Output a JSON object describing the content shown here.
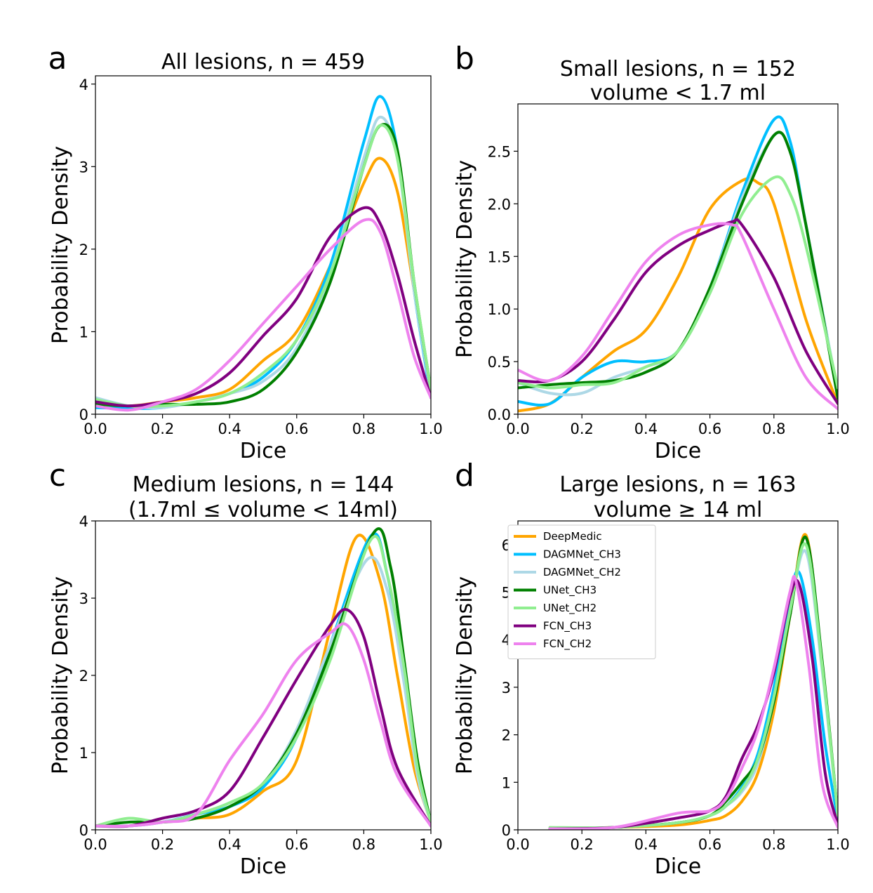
{
  "chart_data": [
    {
      "type": "line",
      "panel_label": "a",
      "title": "All lesions, n = 459",
      "subtitle": "",
      "xlabel": "Dice",
      "ylabel": "Probability Density",
      "xlim": [
        0,
        1
      ],
      "ylim": [
        0,
        4.1
      ],
      "xticks": [
        "0.0",
        "0.2",
        "0.4",
        "0.6",
        "0.8",
        "1.0"
      ],
      "xtick_values": [
        0,
        0.2,
        0.4,
        0.6,
        0.8,
        1.0
      ],
      "yticks": [
        "0",
        "1",
        "2",
        "3",
        "4"
      ],
      "ytick_values": [
        0,
        1,
        2,
        3,
        4
      ],
      "grid": false,
      "series": [
        {
          "key": "deepmedic",
          "x": [
            0,
            0.1,
            0.2,
            0.3,
            0.4,
            0.5,
            0.6,
            0.7,
            0.8,
            0.85,
            0.9,
            0.95,
            1.0
          ],
          "y": [
            0.15,
            0.1,
            0.15,
            0.2,
            0.3,
            0.65,
            1.0,
            1.8,
            2.8,
            3.1,
            2.7,
            1.5,
            0.3
          ]
        },
        {
          "key": "dagmnet_ch3",
          "x": [
            0,
            0.1,
            0.2,
            0.3,
            0.4,
            0.5,
            0.6,
            0.7,
            0.8,
            0.85,
            0.9,
            0.95,
            1.0
          ],
          "y": [
            0.08,
            0.07,
            0.08,
            0.15,
            0.25,
            0.45,
            0.9,
            1.8,
            3.3,
            3.85,
            3.2,
            1.5,
            0.2
          ]
        },
        {
          "key": "dagmnet_ch2",
          "x": [
            0,
            0.1,
            0.2,
            0.3,
            0.4,
            0.5,
            0.6,
            0.7,
            0.8,
            0.85,
            0.9,
            0.95,
            1.0
          ],
          "y": [
            0.2,
            0.1,
            0.08,
            0.15,
            0.25,
            0.4,
            0.8,
            1.7,
            3.1,
            3.6,
            3.1,
            1.5,
            0.25
          ]
        },
        {
          "key": "unet_ch3",
          "x": [
            0,
            0.1,
            0.2,
            0.3,
            0.4,
            0.5,
            0.6,
            0.7,
            0.8,
            0.85,
            0.9,
            0.95,
            1.0
          ],
          "y": [
            0.12,
            0.1,
            0.12,
            0.12,
            0.15,
            0.3,
            0.75,
            1.6,
            3.0,
            3.5,
            3.2,
            1.6,
            0.3
          ]
        },
        {
          "key": "unet_ch2",
          "x": [
            0,
            0.1,
            0.2,
            0.3,
            0.4,
            0.5,
            0.6,
            0.7,
            0.8,
            0.85,
            0.9,
            0.95,
            1.0
          ],
          "y": [
            0.18,
            0.1,
            0.1,
            0.15,
            0.25,
            0.5,
            0.9,
            1.7,
            3.0,
            3.5,
            3.1,
            1.6,
            0.3
          ]
        },
        {
          "key": "fcn_ch3",
          "x": [
            0,
            0.1,
            0.2,
            0.3,
            0.4,
            0.5,
            0.6,
            0.7,
            0.8,
            0.85,
            0.9,
            0.95,
            1.0
          ],
          "y": [
            0.15,
            0.1,
            0.15,
            0.25,
            0.5,
            0.95,
            1.4,
            2.15,
            2.5,
            2.3,
            1.7,
            0.9,
            0.2
          ]
        },
        {
          "key": "fcn_ch2",
          "x": [
            0,
            0.1,
            0.2,
            0.3,
            0.4,
            0.5,
            0.6,
            0.7,
            0.8,
            0.85,
            0.9,
            0.95,
            1.0
          ],
          "y": [
            0.1,
            0.05,
            0.15,
            0.3,
            0.65,
            1.1,
            1.55,
            2.0,
            2.35,
            2.2,
            1.5,
            0.7,
            0.2
          ]
        }
      ]
    },
    {
      "type": "line",
      "panel_label": "b",
      "title": "Small lesions, n = 152",
      "subtitle": "volume < 1.7 ml",
      "xlabel": "Dice",
      "ylabel": "Probability Density",
      "xlim": [
        0,
        1
      ],
      "ylim": [
        0,
        2.95
      ],
      "xticks": [
        "0.0",
        "0.2",
        "0.4",
        "0.6",
        "0.8",
        "1.0"
      ],
      "xtick_values": [
        0,
        0.2,
        0.4,
        0.6,
        0.8,
        1.0
      ],
      "yticks": [
        "0.0",
        "0.5",
        "1.0",
        "1.5",
        "2.0",
        "2.5"
      ],
      "ytick_values": [
        0,
        0.5,
        1.0,
        1.5,
        2.0,
        2.5
      ],
      "grid": false,
      "series": [
        {
          "key": "deepmedic",
          "x": [
            0,
            0.1,
            0.2,
            0.3,
            0.4,
            0.5,
            0.6,
            0.7,
            0.75,
            0.8,
            0.9,
            1.0
          ],
          "y": [
            0.03,
            0.1,
            0.35,
            0.6,
            0.8,
            1.3,
            1.95,
            2.22,
            2.2,
            2.0,
            0.9,
            0.1
          ]
        },
        {
          "key": "dagmnet_ch3",
          "x": [
            0,
            0.1,
            0.2,
            0.3,
            0.4,
            0.5,
            0.6,
            0.7,
            0.8,
            0.85,
            0.9,
            1.0
          ],
          "y": [
            0.12,
            0.1,
            0.35,
            0.5,
            0.5,
            0.6,
            1.2,
            2.1,
            2.8,
            2.6,
            1.8,
            0.2
          ]
        },
        {
          "key": "dagmnet_ch2",
          "x": [
            0,
            0.1,
            0.2,
            0.3,
            0.4,
            0.5,
            0.6,
            0.7,
            0.8,
            0.85,
            0.9,
            1.0
          ],
          "y": [
            0.3,
            0.2,
            0.2,
            0.35,
            0.45,
            0.6,
            1.2,
            2.05,
            2.65,
            2.5,
            1.8,
            0.2
          ]
        },
        {
          "key": "unet_ch3",
          "x": [
            0,
            0.1,
            0.2,
            0.3,
            0.4,
            0.5,
            0.6,
            0.7,
            0.8,
            0.85,
            0.9,
            1.0
          ],
          "y": [
            0.25,
            0.28,
            0.3,
            0.32,
            0.4,
            0.6,
            1.2,
            2.0,
            2.65,
            2.5,
            1.8,
            0.15
          ]
        },
        {
          "key": "unet_ch2",
          "x": [
            0,
            0.1,
            0.2,
            0.3,
            0.4,
            0.5,
            0.6,
            0.7,
            0.8,
            0.85,
            0.9,
            1.0
          ],
          "y": [
            0.3,
            0.25,
            0.28,
            0.3,
            0.45,
            0.6,
            1.15,
            1.9,
            2.25,
            2.1,
            1.6,
            0.25
          ]
        },
        {
          "key": "fcn_ch3",
          "x": [
            0,
            0.1,
            0.2,
            0.3,
            0.4,
            0.5,
            0.6,
            0.67,
            0.7,
            0.8,
            0.9,
            1.0
          ],
          "y": [
            0.32,
            0.32,
            0.5,
            0.9,
            1.35,
            1.6,
            1.75,
            1.83,
            1.8,
            1.3,
            0.6,
            0.1
          ]
        },
        {
          "key": "fcn_ch2",
          "x": [
            0,
            0.1,
            0.2,
            0.3,
            0.4,
            0.5,
            0.6,
            0.67,
            0.7,
            0.8,
            0.9,
            1.0
          ],
          "y": [
            0.42,
            0.32,
            0.55,
            1.0,
            1.45,
            1.7,
            1.8,
            1.8,
            1.7,
            1.0,
            0.35,
            0.05
          ]
        }
      ]
    },
    {
      "type": "line",
      "panel_label": "c",
      "title": "Medium lesions, n = 144",
      "subtitle": "(1.7ml ≤ volume < 14ml)",
      "xlabel": "Dice",
      "ylabel": "Probability Density",
      "xlim": [
        0,
        1
      ],
      "ylim": [
        0,
        4.0
      ],
      "xticks": [
        "0.0",
        "0.2",
        "0.4",
        "0.6",
        "0.8",
        "1.0"
      ],
      "xtick_values": [
        0,
        0.2,
        0.4,
        0.6,
        0.8,
        1.0
      ],
      "yticks": [
        "0",
        "1",
        "2",
        "3",
        "4"
      ],
      "ytick_values": [
        0,
        1,
        2,
        3,
        4
      ],
      "grid": false,
      "series": [
        {
          "key": "deepmedic",
          "x": [
            0,
            0.1,
            0.2,
            0.3,
            0.4,
            0.5,
            0.6,
            0.7,
            0.78,
            0.85,
            0.9,
            0.95,
            1.0
          ],
          "y": [
            0.05,
            0.05,
            0.1,
            0.15,
            0.2,
            0.5,
            0.9,
            2.6,
            3.8,
            3.2,
            2.0,
            0.8,
            0.1
          ]
        },
        {
          "key": "dagmnet_ch3",
          "x": [
            0,
            0.1,
            0.2,
            0.3,
            0.4,
            0.5,
            0.6,
            0.7,
            0.82,
            0.87,
            0.92,
            0.96,
            1.0
          ],
          "y": [
            0.05,
            0.05,
            0.1,
            0.2,
            0.3,
            0.55,
            1.2,
            2.4,
            3.8,
            3.3,
            2.0,
            0.8,
            0.1
          ]
        },
        {
          "key": "dagmnet_ch2",
          "x": [
            0,
            0.1,
            0.2,
            0.3,
            0.4,
            0.5,
            0.6,
            0.7,
            0.81,
            0.87,
            0.92,
            0.96,
            1.0
          ],
          "y": [
            0.05,
            0.05,
            0.1,
            0.2,
            0.35,
            0.6,
            1.3,
            2.4,
            3.5,
            3.1,
            1.9,
            0.7,
            0.1
          ]
        },
        {
          "key": "unet_ch3",
          "x": [
            0,
            0.1,
            0.2,
            0.3,
            0.4,
            0.5,
            0.6,
            0.7,
            0.83,
            0.88,
            0.92,
            0.96,
            1.0
          ],
          "y": [
            0.05,
            0.1,
            0.1,
            0.15,
            0.3,
            0.6,
            1.25,
            2.3,
            3.85,
            3.4,
            2.2,
            0.9,
            0.1
          ]
        },
        {
          "key": "unet_ch2",
          "x": [
            0,
            0.1,
            0.2,
            0.3,
            0.4,
            0.5,
            0.6,
            0.7,
            0.82,
            0.87,
            0.92,
            0.96,
            1.0
          ],
          "y": [
            0.05,
            0.15,
            0.1,
            0.2,
            0.35,
            0.6,
            1.2,
            2.2,
            3.75,
            3.3,
            2.1,
            0.8,
            0.1
          ]
        },
        {
          "key": "fcn_ch3",
          "x": [
            0,
            0.1,
            0.2,
            0.3,
            0.4,
            0.5,
            0.6,
            0.7,
            0.75,
            0.8,
            0.85,
            0.9,
            1.0
          ],
          "y": [
            0.05,
            0.05,
            0.15,
            0.25,
            0.5,
            1.2,
            1.95,
            2.65,
            2.85,
            2.5,
            1.6,
            0.8,
            0.05
          ]
        },
        {
          "key": "fcn_ch2",
          "x": [
            0,
            0.1,
            0.2,
            0.3,
            0.4,
            0.5,
            0.6,
            0.7,
            0.75,
            0.8,
            0.85,
            0.9,
            1.0
          ],
          "y": [
            0.05,
            0.05,
            0.1,
            0.2,
            0.9,
            1.5,
            2.2,
            2.55,
            2.65,
            2.2,
            1.4,
            0.7,
            0.05
          ]
        }
      ]
    },
    {
      "type": "line",
      "panel_label": "d",
      "title": "Large lesions, n = 163",
      "subtitle": "volume ≥ 14 ml",
      "xlabel": "Dice",
      "ylabel": "Probability Density",
      "xlim": [
        0,
        1
      ],
      "ylim": [
        0,
        6.5
      ],
      "xticks": [
        "0.0",
        "0.2",
        "0.4",
        "0.6",
        "0.8",
        "1.0"
      ],
      "xtick_values": [
        0,
        0.2,
        0.4,
        0.6,
        0.8,
        1.0
      ],
      "yticks": [
        "0",
        "1",
        "2",
        "3",
        "4",
        "5",
        "6"
      ],
      "ytick_values": [
        0,
        1,
        2,
        3,
        4,
        5,
        6
      ],
      "grid": false,
      "legend": {
        "placement": "upper-left"
      },
      "series": [
        {
          "key": "deepmedic",
          "x": [
            0.1,
            0.3,
            0.5,
            0.6,
            0.65,
            0.7,
            0.75,
            0.8,
            0.85,
            0.9,
            0.95,
            1.0
          ],
          "y": [
            0.02,
            0.05,
            0.1,
            0.2,
            0.3,
            0.6,
            1.2,
            2.5,
            4.5,
            6.2,
            3.5,
            0.3
          ]
        },
        {
          "key": "dagmnet_ch3",
          "x": [
            0.1,
            0.3,
            0.5,
            0.6,
            0.65,
            0.7,
            0.75,
            0.8,
            0.85,
            0.88,
            0.92,
            0.96,
            1.0
          ],
          "y": [
            0.02,
            0.05,
            0.15,
            0.3,
            0.5,
            0.9,
            1.6,
            3.0,
            4.9,
            5.4,
            4.0,
            1.8,
            0.2
          ]
        },
        {
          "key": "dagmnet_ch2",
          "x": [
            0.1,
            0.3,
            0.5,
            0.6,
            0.65,
            0.7,
            0.75,
            0.8,
            0.85,
            0.9,
            0.95,
            1.0
          ],
          "y": [
            0.02,
            0.05,
            0.15,
            0.3,
            0.5,
            0.8,
            1.4,
            2.7,
            4.6,
            5.85,
            3.4,
            0.3
          ]
        },
        {
          "key": "unet_ch3",
          "x": [
            0.1,
            0.3,
            0.5,
            0.6,
            0.65,
            0.7,
            0.75,
            0.8,
            0.85,
            0.9,
            0.95,
            1.0
          ],
          "y": [
            0.02,
            0.05,
            0.15,
            0.3,
            0.6,
            1.0,
            1.5,
            2.7,
            4.5,
            6.15,
            3.6,
            0.3
          ]
        },
        {
          "key": "unet_ch2",
          "x": [
            0.1,
            0.3,
            0.5,
            0.6,
            0.65,
            0.7,
            0.75,
            0.8,
            0.85,
            0.9,
            0.95,
            1.0
          ],
          "y": [
            0.05,
            0.05,
            0.15,
            0.3,
            0.5,
            0.85,
            1.5,
            2.8,
            4.6,
            6.0,
            3.5,
            0.3
          ]
        },
        {
          "key": "fcn_ch3",
          "x": [
            0.1,
            0.3,
            0.5,
            0.6,
            0.65,
            0.7,
            0.75,
            0.8,
            0.85,
            0.88,
            0.92,
            0.96,
            1.0
          ],
          "y": [
            0.02,
            0.05,
            0.25,
            0.4,
            0.7,
            1.5,
            2.2,
            3.3,
            4.9,
            5.15,
            3.6,
            1.2,
            0.1
          ]
        },
        {
          "key": "fcn_ch2",
          "x": [
            0.1,
            0.3,
            0.5,
            0.6,
            0.65,
            0.7,
            0.75,
            0.8,
            0.85,
            0.87,
            0.91,
            0.95,
            1.0
          ],
          "y": [
            0.02,
            0.05,
            0.35,
            0.4,
            0.65,
            1.3,
            2.1,
            3.4,
            5.0,
            5.2,
            3.4,
            1.0,
            0.05
          ]
        }
      ]
    }
  ],
  "legend_entries": [
    {
      "key": "deepmedic",
      "name": "DeepMedic",
      "color": "#ffa500"
    },
    {
      "key": "dagmnet_ch3",
      "name": "DAGMNet_CH3",
      "color": "#00bfff"
    },
    {
      "key": "dagmnet_ch2",
      "name": "DAGMNet_CH2",
      "color": "#add8e6"
    },
    {
      "key": "unet_ch3",
      "name": "UNet_CH3",
      "color": "#008000"
    },
    {
      "key": "unet_ch2",
      "name": "UNet_CH2",
      "color": "#90ee90"
    },
    {
      "key": "fcn_ch3",
      "name": "FCN_CH3",
      "color": "#800080"
    },
    {
      "key": "fcn_ch2",
      "name": "FCN_CH2",
      "color": "#ee82ee"
    }
  ]
}
